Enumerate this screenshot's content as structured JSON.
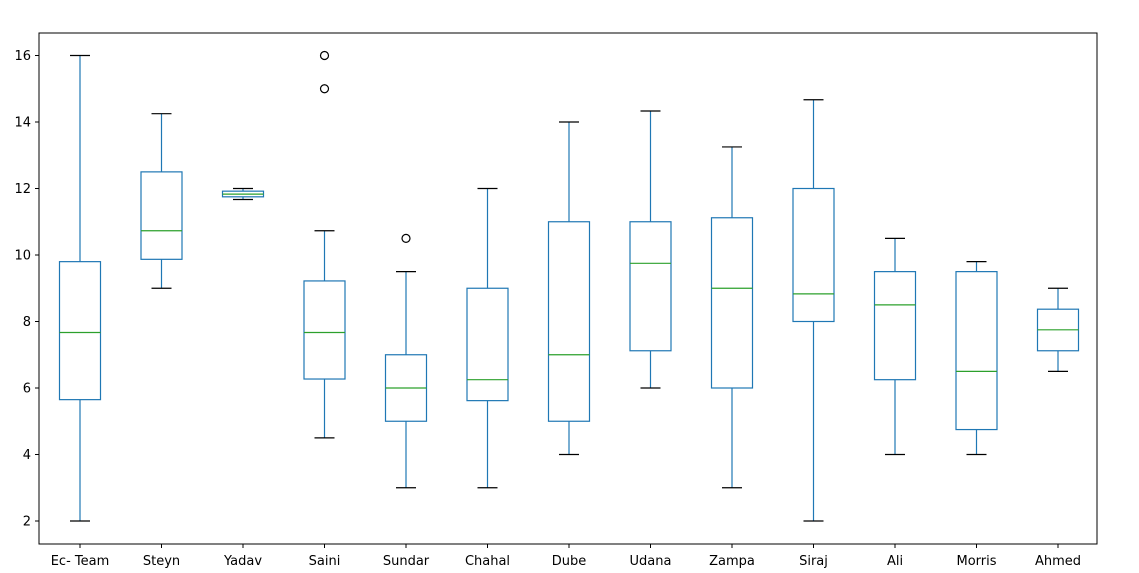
{
  "chart_data": {
    "type": "boxplot",
    "grid": false,
    "ylim": [
      1.3,
      16.7
    ],
    "yticks": [
      2,
      4,
      6,
      8,
      10,
      12,
      14,
      16
    ],
    "ytick_labels": [
      "2",
      "4",
      "6",
      "8",
      "10",
      "12",
      "14",
      "16"
    ],
    "categories": [
      "Ec- Team",
      "Steyn",
      "Yadav",
      "Saini",
      "Sundar",
      "Chahal",
      "Dube",
      "Udana",
      "Zampa",
      "Siraj",
      "Ali",
      "Morris",
      "Ahmed"
    ],
    "boxes": [
      {
        "whisker_low": 2,
        "q1": 5.65,
        "median": 7.67,
        "q3": 9.8,
        "whisker_high": 16,
        "outliers": []
      },
      {
        "whisker_low": 9,
        "q1": 9.87,
        "median": 10.73,
        "q3": 12.5,
        "whisker_high": 14.25,
        "outliers": []
      },
      {
        "whisker_low": 11.67,
        "q1": 11.75,
        "median": 11.83,
        "q3": 11.92,
        "whisker_high": 12,
        "outliers": []
      },
      {
        "whisker_low": 4.5,
        "q1": 6.27,
        "median": 7.67,
        "q3": 9.22,
        "whisker_high": 10.73,
        "outliers": [
          15,
          16
        ]
      },
      {
        "whisker_low": 3,
        "q1": 5,
        "median": 6,
        "q3": 7,
        "whisker_high": 9.5,
        "outliers": [
          10.5
        ]
      },
      {
        "whisker_low": 3,
        "q1": 5.62,
        "median": 6.25,
        "q3": 9,
        "whisker_high": 12,
        "outliers": []
      },
      {
        "whisker_low": 4,
        "q1": 5,
        "median": 7,
        "q3": 11,
        "whisker_high": 14,
        "outliers": []
      },
      {
        "whisker_low": 6,
        "q1": 7.12,
        "median": 9.75,
        "q3": 11,
        "whisker_high": 14.33,
        "outliers": []
      },
      {
        "whisker_low": 3,
        "q1": 6,
        "median": 9,
        "q3": 11.12,
        "whisker_high": 13.25,
        "outliers": []
      },
      {
        "whisker_low": 2,
        "q1": 8,
        "median": 8.83,
        "q3": 12,
        "whisker_high": 14.67,
        "outliers": []
      },
      {
        "whisker_low": 4,
        "q1": 6.25,
        "median": 8.5,
        "q3": 9.5,
        "whisker_high": 10.5,
        "outliers": []
      },
      {
        "whisker_low": 4,
        "q1": 4.75,
        "median": 6.5,
        "q3": 9.5,
        "whisker_high": 9.8,
        "outliers": []
      },
      {
        "whisker_low": 6.5,
        "q1": 7.12,
        "median": 7.75,
        "q3": 8.37,
        "whisker_high": 9,
        "outliers": []
      }
    ],
    "colors": {
      "box": "#1f77b4",
      "median": "#2ca02c",
      "cap": "#000000",
      "outlier": "#000000",
      "axis": "#000000"
    }
  }
}
